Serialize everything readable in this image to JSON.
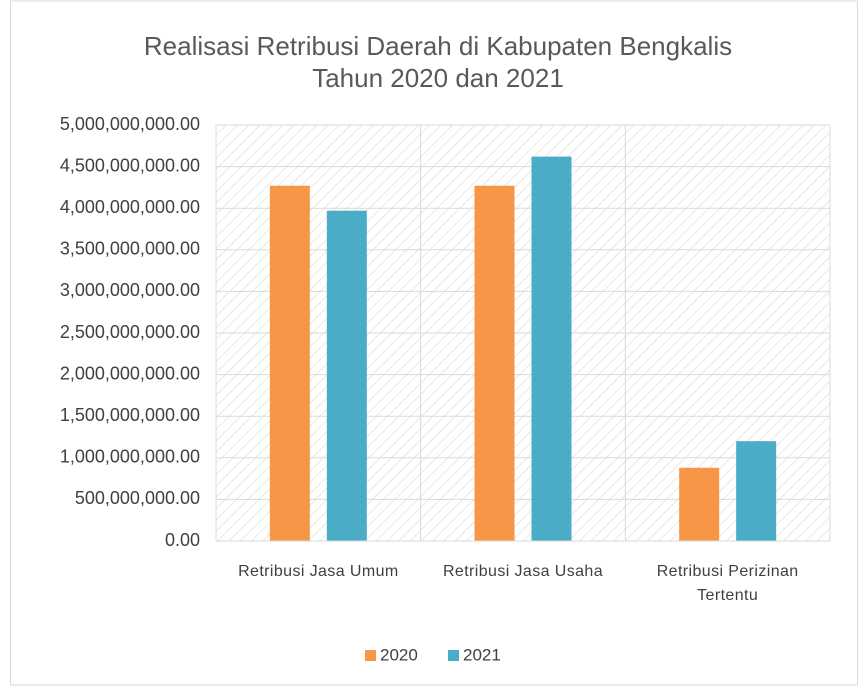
{
  "chart_data": {
    "type": "bar",
    "title": [
      "Realisasi Retribusi Daerah di Kabupaten Bengkalis",
      "Tahun 2020 dan 2021"
    ],
    "categories": [
      "Retribusi Jasa Umum",
      "Retribusi Jasa Usaha",
      "Retribusi Perizinan Tertentu"
    ],
    "series": [
      {
        "name": "2020",
        "color": "#f79646",
        "values": [
          4270000000,
          4270000000,
          880000000
        ]
      },
      {
        "name": "2021",
        "color": "#4bacc6",
        "values": [
          3970000000,
          4620000000,
          1200000000
        ]
      }
    ],
    "ylim": [
      0,
      5000000000
    ],
    "yticks": [
      {
        "value": 0,
        "label": "0.00"
      },
      {
        "value": 500000000,
        "label": "500,000,000.00"
      },
      {
        "value": 1000000000,
        "label": "1,000,000,000.00"
      },
      {
        "value": 1500000000,
        "label": "1,500,000,000.00"
      },
      {
        "value": 2000000000,
        "label": "2,000,000,000.00"
      },
      {
        "value": 2500000000,
        "label": "2,500,000,000.00"
      },
      {
        "value": 3000000000,
        "label": "3,000,000,000.00"
      },
      {
        "value": 3500000000,
        "label": "3,500,000,000.00"
      },
      {
        "value": 4000000000,
        "label": "4,000,000,000.00"
      },
      {
        "value": 4500000000,
        "label": "4,500,000,000.00"
      },
      {
        "value": 5000000000,
        "label": "5,000,000,000.00"
      }
    ],
    "grid": true,
    "legend": "bottom"
  }
}
